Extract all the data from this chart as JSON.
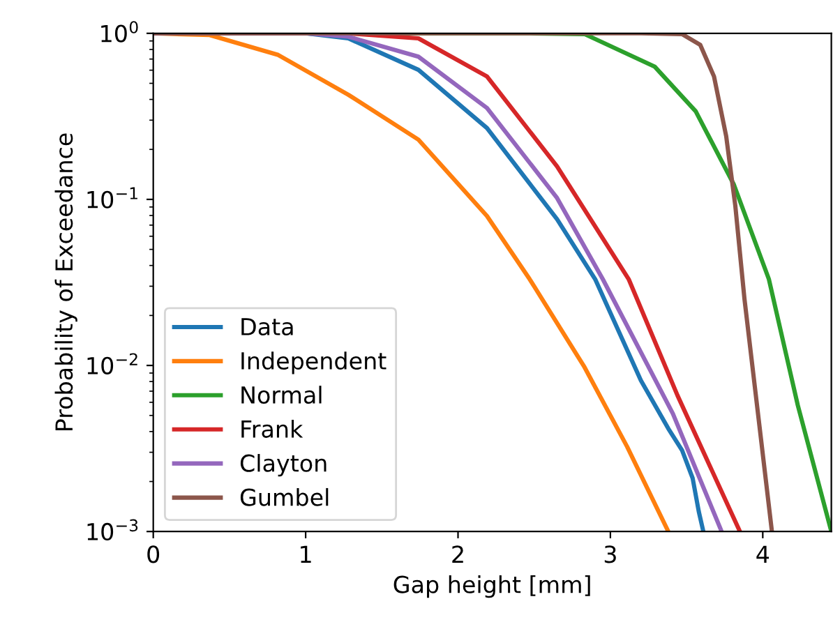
{
  "chart_data": {
    "type": "line",
    "xlabel": "Gap height [mm]",
    "ylabel": "Probability of Exceedance",
    "log": "y",
    "xlim": [
      0,
      4.45
    ],
    "xticks": [
      0,
      1,
      2,
      3,
      4
    ],
    "ylim": [
      0.001,
      1
    ],
    "yticks": [
      {
        "value": 0.001,
        "label": "10$^{−3}$"
      },
      {
        "value": 0.01,
        "label": "10$^{−2}$"
      },
      {
        "value": 0.1,
        "label": "10$^{−1}$"
      },
      {
        "value": 1,
        "label": "10$^{0}$"
      }
    ],
    "legend": "bottom left",
    "grid": false,
    "line_style": "solid",
    "marker": "none",
    "series": [
      {
        "name": "Data",
        "color": "#1f77b4",
        "x": [
          0,
          1.0,
          1.28,
          1.74,
          2.19,
          2.65,
          2.9,
          3.2,
          3.38,
          3.47,
          3.54,
          3.58,
          3.61
        ],
        "values": [
          1,
          1,
          0.933,
          0.603,
          0.269,
          0.0759,
          0.0331,
          0.00813,
          0.00417,
          0.00309,
          0.00209,
          0.00132,
          0.001
        ]
      },
      {
        "name": "Independent",
        "color": "#ff7f0e",
        "x": [
          0,
          0.37,
          0.82,
          1.28,
          1.74,
          2.19,
          2.47,
          2.83,
          3.11,
          3.38
        ],
        "values": [
          1,
          0.977,
          0.741,
          0.427,
          0.229,
          0.0794,
          0.0331,
          0.00977,
          0.00324,
          0.001
        ]
      },
      {
        "name": "Normal",
        "color": "#2ca02c",
        "x": [
          0,
          2.47,
          2.83,
          3.29,
          3.56,
          3.81,
          4.04,
          4.23,
          4.45
        ],
        "values": [
          1,
          1,
          0.99,
          0.631,
          0.339,
          0.123,
          0.0331,
          0.00575,
          0.001
        ]
      },
      {
        "name": "Frank",
        "color": "#d62728",
        "x": [
          0,
          1.28,
          1.74,
          2.19,
          2.65,
          3.12,
          3.44,
          3.85
        ],
        "values": [
          1,
          1,
          0.933,
          0.55,
          0.158,
          0.0331,
          0.00661,
          0.001
        ]
      },
      {
        "name": "Clayton",
        "color": "#9467bd",
        "x": [
          0,
          1.0,
          1.28,
          1.74,
          2.19,
          2.65,
          2.95,
          3.41,
          3.73
        ],
        "values": [
          1,
          1,
          0.955,
          0.724,
          0.355,
          0.102,
          0.0331,
          0.00513,
          0.001
        ]
      },
      {
        "name": "Gumbel",
        "color": "#8c564b",
        "x": [
          0,
          3.2,
          3.47,
          3.59,
          3.68,
          3.76,
          3.82,
          3.88,
          4.06
        ],
        "values": [
          1,
          1,
          0.99,
          0.851,
          0.55,
          0.24,
          0.0912,
          0.0251,
          0.001
        ]
      }
    ]
  }
}
